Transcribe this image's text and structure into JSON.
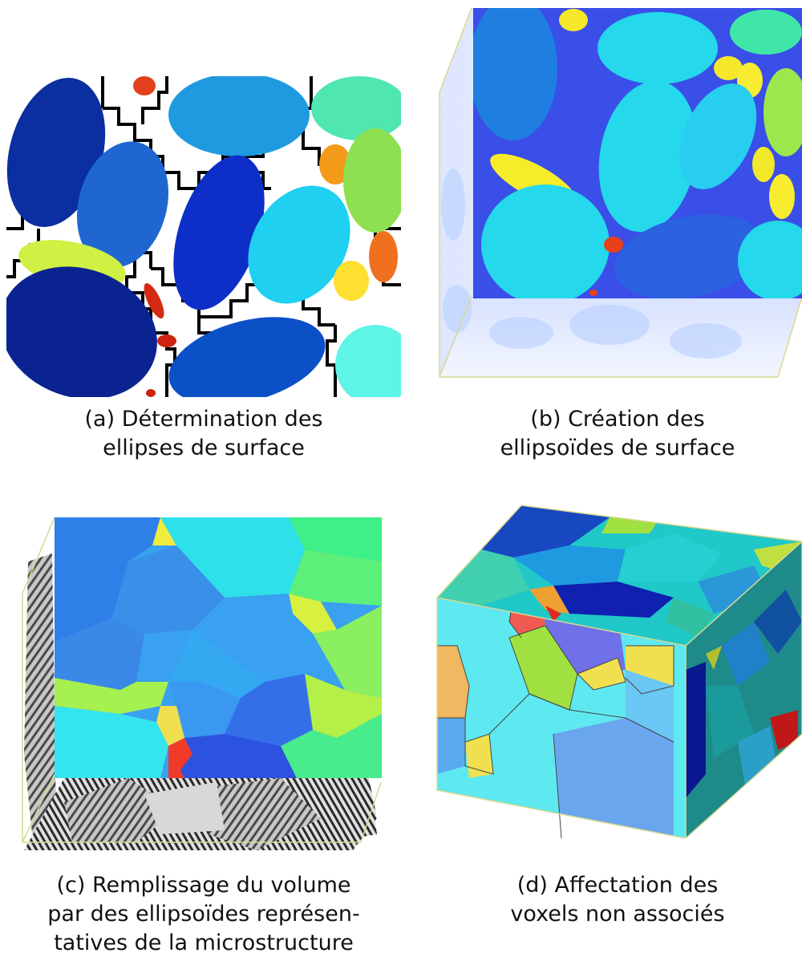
{
  "figures": [
    {
      "id": "a",
      "caption_lines": [
        "(a) Détermination des",
        "ellipses de surface"
      ]
    },
    {
      "id": "b",
      "caption_lines": [
        "(b) Création des",
        "ellipsoïdes de surface"
      ]
    },
    {
      "id": "c",
      "caption_lines": [
        "(c) Remplissage du volume",
        "par des ellipsoïdes représen-",
        "tatives de la microstructure"
      ]
    },
    {
      "id": "d",
      "caption_lines": [
        "(d) Affectation des",
        "voxels non associés"
      ]
    }
  ]
}
